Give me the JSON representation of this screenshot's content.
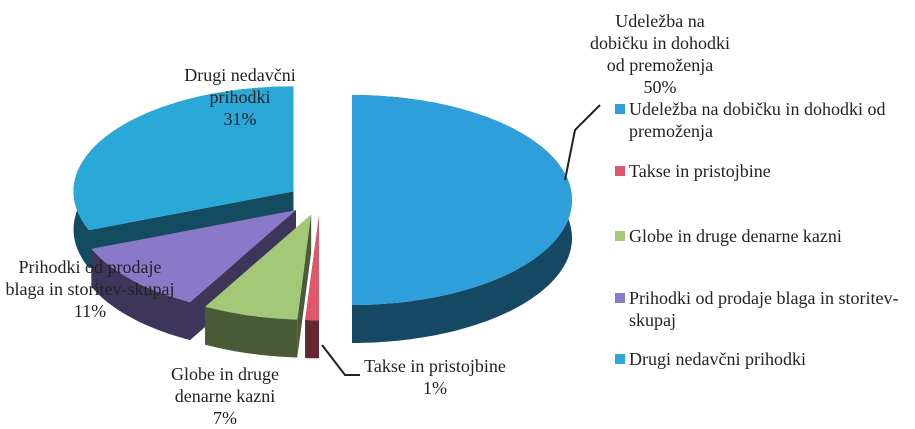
{
  "chart_data": {
    "type": "pie",
    "categories": [
      "Udeležba na dobičku in dohodki od premoženja",
      "Takse in pristojbine",
      "Globe in druge denarne kazni",
      "Prihodki od prodaje blaga in storitev-skupaj",
      "Drugi nedavčni prihodki"
    ],
    "values": [
      50,
      1,
      7,
      11,
      31
    ],
    "value_labels": [
      "50%",
      "1%",
      "7%",
      "11%",
      "31%"
    ],
    "colors": [
      "#2f9fdc",
      "#e0566a",
      "#a2c878",
      "#8a78c8",
      "#2aa8d8"
    ],
    "legend": "right"
  }
}
